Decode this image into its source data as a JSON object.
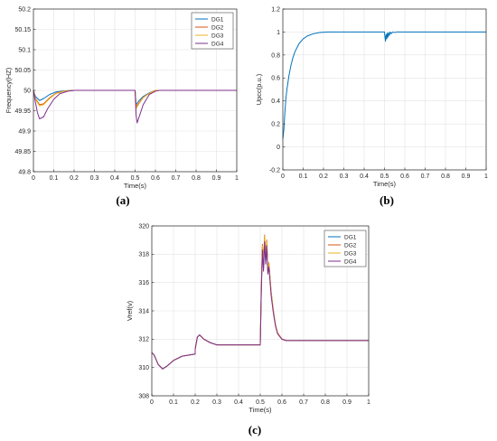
{
  "chart_data": [
    {
      "type": "line",
      "caption": "(a)",
      "xlabel": "Time(s)",
      "ylabel": "Frequency(HZ)",
      "xlim": [
        0,
        1
      ],
      "ylim": [
        49.8,
        50.2
      ],
      "xticks": [
        0,
        0.1,
        0.2,
        0.3,
        0.4,
        0.5,
        0.6,
        0.7,
        0.8,
        0.9,
        1
      ],
      "yticks": [
        49.8,
        49.85,
        49.9,
        49.95,
        50,
        50.05,
        50.1,
        50.15,
        50.2
      ],
      "xtick_labels": [
        "0",
        "0.1",
        "0.2",
        "0.3",
        "0.4",
        "0.5",
        "0.6",
        "0.7",
        "0.8",
        "0.9",
        "1"
      ],
      "ytick_labels": [
        "49.8",
        "49.85",
        "49.9",
        "49.95",
        "50",
        "50.05",
        "50.1",
        "50.15",
        "50.2"
      ],
      "grid": true,
      "legend": "top-right",
      "series": [
        {
          "name": "DG1",
          "color": "#0072bd",
          "x": [
            0,
            0.01,
            0.03,
            0.05,
            0.08,
            0.11,
            0.15,
            0.2,
            0.5,
            0.505,
            0.52,
            0.54,
            0.57,
            0.6,
            1
          ],
          "y": [
            50,
            49.985,
            49.975,
            49.98,
            49.99,
            49.996,
            49.999,
            50,
            50,
            49.965,
            49.975,
            49.985,
            49.994,
            50,
            50
          ]
        },
        {
          "name": "DG2",
          "color": "#d95319",
          "x": [
            0,
            0.01,
            0.03,
            0.05,
            0.08,
            0.11,
            0.15,
            0.2,
            0.5,
            0.505,
            0.52,
            0.54,
            0.57,
            0.6,
            1
          ],
          "y": [
            50,
            49.98,
            49.965,
            49.967,
            49.982,
            49.993,
            49.998,
            50,
            50,
            49.96,
            49.97,
            49.983,
            49.993,
            50,
            50
          ]
        },
        {
          "name": "DG3",
          "color": "#edb120",
          "x": [
            0,
            0.01,
            0.03,
            0.05,
            0.08,
            0.11,
            0.15,
            0.2,
            0.5,
            0.505,
            0.52,
            0.54,
            0.57,
            0.6,
            1
          ],
          "y": [
            50,
            49.978,
            49.962,
            49.965,
            49.98,
            49.992,
            49.998,
            50,
            50,
            49.955,
            49.968,
            49.982,
            49.993,
            50,
            50
          ]
        },
        {
          "name": "DG4",
          "color": "#7e2f8e",
          "x": [
            0,
            0.01,
            0.02,
            0.03,
            0.05,
            0.07,
            0.1,
            0.13,
            0.17,
            0.2,
            0.5,
            0.505,
            0.51,
            0.52,
            0.54,
            0.57,
            0.6,
            0.62,
            1
          ],
          "y": [
            50,
            49.97,
            49.945,
            49.93,
            49.935,
            49.955,
            49.978,
            49.992,
            49.998,
            50,
            50,
            49.94,
            49.92,
            49.935,
            49.965,
            49.99,
            49.998,
            50,
            50
          ]
        }
      ]
    },
    {
      "type": "line",
      "caption": "(b)",
      "xlabel": "Time(s)",
      "ylabel": "Upcc(p.u.)",
      "xlim": [
        0,
        1
      ],
      "ylim": [
        -0.2,
        1.2
      ],
      "xticks": [
        0,
        0.1,
        0.2,
        0.3,
        0.4,
        0.5,
        0.6,
        0.7,
        0.8,
        0.9,
        1
      ],
      "yticks": [
        -0.2,
        0,
        0.2,
        0.4,
        0.6,
        0.8,
        1,
        1.2
      ],
      "xtick_labels": [
        "0",
        "0.1",
        "0.2",
        "0.3",
        "0.4",
        "0.5",
        "0.6",
        "0.7",
        "0.8",
        "0.9",
        "1"
      ],
      "ytick_labels": [
        "-0.2",
        "0",
        "0.2",
        "0.4",
        "0.6",
        "0.8",
        "1",
        "1.2"
      ],
      "grid": true,
      "series": [
        {
          "color": "#0072bd",
          "x": [
            0,
            0.005,
            0.01,
            0.015,
            0.02,
            0.03,
            0.04,
            0.05,
            0.06,
            0.08,
            0.1,
            0.12,
            0.15,
            0.18,
            0.22,
            0.5,
            0.502,
            0.505,
            0.508,
            0.511,
            0.514,
            0.517,
            0.52,
            0.524,
            0.528,
            0.533,
            0.54,
            0.55,
            0.56,
            1
          ],
          "y": [
            0.07,
            0.15,
            0.3,
            0.42,
            0.5,
            0.62,
            0.71,
            0.78,
            0.83,
            0.9,
            0.94,
            0.965,
            0.985,
            0.995,
            1,
            1,
            0.96,
            0.92,
            0.98,
            0.94,
            0.99,
            0.955,
            0.995,
            0.97,
            1,
            0.985,
            1,
            0.995,
            1,
            1
          ]
        }
      ]
    },
    {
      "type": "line",
      "caption": "(c)",
      "xlabel": "Time(s)",
      "ylabel": "Vref(v)",
      "xlim": [
        0,
        1
      ],
      "ylim": [
        308,
        320
      ],
      "xticks": [
        0,
        0.1,
        0.2,
        0.3,
        0.4,
        0.5,
        0.6,
        0.7,
        0.8,
        0.9,
        1
      ],
      "yticks": [
        308,
        310,
        312,
        314,
        316,
        318,
        320
      ],
      "xtick_labels": [
        "0",
        "0.1",
        "0.2",
        "0.3",
        "0.4",
        "0.5",
        "0.6",
        "0.7",
        "0.8",
        "0.9",
        "1"
      ],
      "ytick_labels": [
        "308",
        "310",
        "312",
        "314",
        "316",
        "318",
        "320"
      ],
      "grid": true,
      "legend": "top-right",
      "series": [
        {
          "name": "DG1",
          "color": "#0072bd",
          "x": [
            0,
            0.01,
            0.03,
            0.05,
            0.07,
            0.1,
            0.14,
            0.2,
            0.2,
            0.21,
            0.22,
            0.24,
            0.27,
            0.3,
            0.35,
            0.5,
            0.505,
            0.51,
            0.515,
            0.52,
            0.525,
            0.53,
            0.535,
            0.54,
            0.55,
            0.56,
            0.57,
            0.58,
            0.6,
            0.62,
            0.65,
            1
          ],
          "y": [
            311.05,
            310.9,
            310.2,
            309.9,
            310.1,
            310.5,
            310.8,
            310.95,
            311.3,
            312.15,
            312.3,
            312.0,
            311.75,
            311.6,
            311.6,
            311.6,
            315.5,
            318.5,
            317.0,
            319.2,
            317.5,
            318.9,
            316.8,
            317.3,
            315.3,
            314.0,
            313.0,
            312.4,
            312.0,
            311.9,
            311.9,
            311.9
          ]
        },
        {
          "name": "DG2",
          "color": "#d95319",
          "x": [
            0,
            0.01,
            0.03,
            0.05,
            0.07,
            0.1,
            0.14,
            0.2,
            0.2,
            0.21,
            0.22,
            0.24,
            0.27,
            0.3,
            0.35,
            0.5,
            0.505,
            0.51,
            0.515,
            0.52,
            0.525,
            0.53,
            0.535,
            0.54,
            0.55,
            0.56,
            0.57,
            0.58,
            0.6,
            0.62,
            0.65,
            1
          ],
          "y": [
            311.05,
            310.9,
            310.2,
            309.9,
            310.1,
            310.5,
            310.8,
            310.95,
            311.3,
            312.15,
            312.3,
            312.0,
            311.75,
            311.6,
            311.6,
            311.6,
            315.7,
            318.7,
            317.2,
            319.35,
            317.6,
            319.0,
            316.9,
            317.4,
            315.4,
            314.1,
            313.05,
            312.45,
            312.02,
            311.9,
            311.9,
            311.9
          ]
        },
        {
          "name": "DG3",
          "color": "#edb120",
          "x": [
            0,
            0.01,
            0.03,
            0.05,
            0.07,
            0.1,
            0.14,
            0.2,
            0.2,
            0.21,
            0.22,
            0.24,
            0.27,
            0.3,
            0.35,
            0.5,
            0.505,
            0.51,
            0.515,
            0.52,
            0.525,
            0.53,
            0.535,
            0.54,
            0.55,
            0.56,
            0.57,
            0.58,
            0.6,
            0.62,
            0.65,
            1
          ],
          "y": [
            311.05,
            310.9,
            310.2,
            309.9,
            310.1,
            310.5,
            310.8,
            310.95,
            311.3,
            312.15,
            312.3,
            312.0,
            311.75,
            311.6,
            311.6,
            311.6,
            315.6,
            318.6,
            317.1,
            319.3,
            317.55,
            318.95,
            316.85,
            317.35,
            315.35,
            314.05,
            313.02,
            312.42,
            312.01,
            311.9,
            311.9,
            311.9
          ]
        },
        {
          "name": "DG4",
          "color": "#7e2f8e",
          "x": [
            0,
            0.01,
            0.03,
            0.05,
            0.07,
            0.1,
            0.14,
            0.2,
            0.2,
            0.21,
            0.22,
            0.24,
            0.27,
            0.3,
            0.35,
            0.5,
            0.505,
            0.51,
            0.515,
            0.52,
            0.525,
            0.53,
            0.535,
            0.54,
            0.55,
            0.56,
            0.57,
            0.58,
            0.6,
            0.62,
            0.65,
            1
          ],
          "y": [
            311.05,
            310.9,
            310.2,
            309.9,
            310.1,
            310.5,
            310.8,
            310.95,
            311.3,
            312.15,
            312.3,
            312.0,
            311.75,
            311.6,
            311.6,
            311.6,
            315.4,
            318.3,
            316.8,
            318.9,
            317.3,
            318.6,
            316.6,
            317.1,
            315.1,
            313.9,
            312.95,
            312.38,
            311.99,
            311.9,
            311.9,
            311.9
          ]
        }
      ]
    }
  ]
}
